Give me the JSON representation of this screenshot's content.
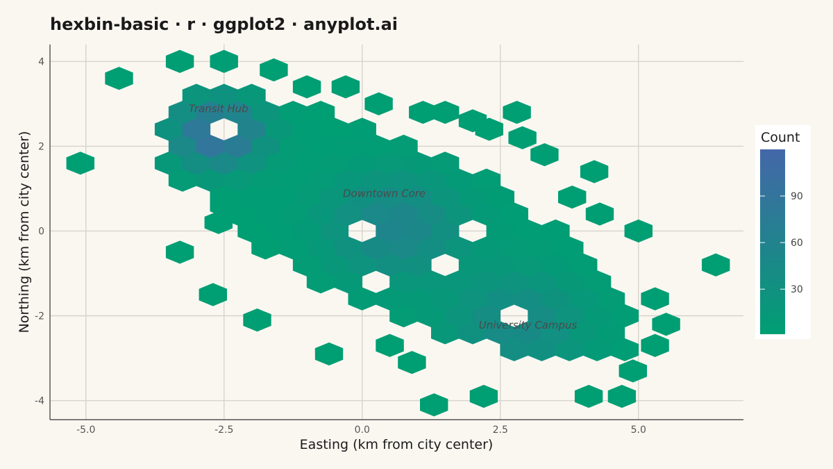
{
  "chart_data": {
    "type": "hexbin",
    "title": "hexbin-basic · r · ggplot2 · anyplot.ai",
    "xlabel": "Easting (km from city center)",
    "ylabel": "Northing (km from city center)",
    "xlim": [
      -5.65,
      6.9
    ],
    "ylim": [
      -4.45,
      4.4
    ],
    "x_ticks": [
      -5.0,
      -2.5,
      0.0,
      2.5,
      5.0
    ],
    "x_tick_labels": [
      "-5.0",
      "-2.5",
      "0.0",
      "2.5",
      "5.0"
    ],
    "y_ticks": [
      -4,
      -2,
      0,
      2,
      4
    ],
    "y_tick_labels": [
      "-4",
      "-2",
      "0",
      "2",
      "4"
    ],
    "grid": true,
    "legend": {
      "title": "Count",
      "position": "right",
      "ticks": [
        30,
        60,
        90
      ],
      "tick_labels": [
        "30",
        "60",
        "90"
      ],
      "range": [
        1,
        120
      ],
      "color_low": "#009E73",
      "color_high": "#4467A9"
    },
    "annotations": [
      {
        "text": "Transit Hub",
        "x": -2.6,
        "y": 2.8
      },
      {
        "text": "Downtown Core",
        "x": 0.4,
        "y": 0.8
      },
      {
        "text": "University Campus",
        "x": 3.0,
        "y": -2.3
      }
    ],
    "clusters": [
      {
        "name": "Transit Hub",
        "center": [
          -2.6,
          2.3
        ],
        "peak": 105
      },
      {
        "name": "Downtown Core",
        "center": [
          0.6,
          0.1
        ],
        "peak": 55
      },
      {
        "name": "University Campus",
        "center": [
          2.8,
          -2.2
        ],
        "peak": 45
      }
    ],
    "bins": [
      {
        "x": -4.4,
        "y": 3.6,
        "count": 1
      },
      {
        "x": -3.3,
        "y": 4.0,
        "count": 2
      },
      {
        "x": -2.5,
        "y": 4.0,
        "count": 3
      },
      {
        "x": -1.6,
        "y": 3.8,
        "count": 1
      },
      {
        "x": -1.0,
        "y": 3.4,
        "count": 1
      },
      {
        "x": -0.3,
        "y": 3.4,
        "count": 1
      },
      {
        "x": -5.1,
        "y": 1.6,
        "count": 1
      },
      {
        "x": 0.3,
        "y": 3.0,
        "count": 1
      },
      {
        "x": 1.1,
        "y": 2.8,
        "count": 1
      },
      {
        "x": 1.5,
        "y": 2.8,
        "count": 1
      },
      {
        "x": 2.8,
        "y": 2.8,
        "count": 1
      },
      {
        "x": 2.0,
        "y": 2.6,
        "count": 2
      },
      {
        "x": 2.3,
        "y": 2.4,
        "count": 1
      },
      {
        "x": 2.9,
        "y": 2.2,
        "count": 2
      },
      {
        "x": 3.3,
        "y": 1.8,
        "count": 1
      },
      {
        "x": 4.2,
        "y": 1.4,
        "count": 1
      },
      {
        "x": 3.8,
        "y": 0.8,
        "count": 1
      },
      {
        "x": 4.3,
        "y": 0.4,
        "count": 2
      },
      {
        "x": 5.0,
        "y": 0.0,
        "count": 1
      },
      {
        "x": 6.4,
        "y": -0.8,
        "count": 1
      },
      {
        "x": 5.3,
        "y": -1.6,
        "count": 1
      },
      {
        "x": 5.5,
        "y": -2.2,
        "count": 1
      },
      {
        "x": 5.3,
        "y": -2.7,
        "count": 1
      },
      {
        "x": 4.9,
        "y": -3.3,
        "count": 1
      },
      {
        "x": 4.7,
        "y": -3.9,
        "count": 1
      },
      {
        "x": 4.1,
        "y": -3.9,
        "count": 1
      },
      {
        "x": 2.2,
        "y": -3.9,
        "count": 1
      },
      {
        "x": 1.3,
        "y": -4.1,
        "count": 1
      },
      {
        "x": -0.6,
        "y": -2.9,
        "count": 1
      },
      {
        "x": -1.9,
        "y": -2.1,
        "count": 1
      },
      {
        "x": -3.3,
        "y": -0.5,
        "count": 1
      },
      {
        "x": -2.7,
        "y": -1.5,
        "count": 1
      },
      {
        "x": -2.6,
        "y": 0.2,
        "count": 1
      },
      {
        "x": -2.5,
        "y": 0.6,
        "count": 2
      },
      {
        "x": 0.5,
        "y": -2.7,
        "count": 1
      },
      {
        "x": 0.9,
        "y": -3.1,
        "count": 1
      }
    ]
  }
}
